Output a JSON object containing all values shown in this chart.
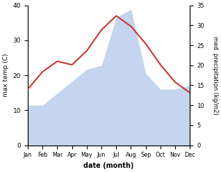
{
  "months": [
    "Jan",
    "Feb",
    "Mar",
    "Apr",
    "May",
    "Jun",
    "Jul",
    "Aug",
    "Sep",
    "Oct",
    "Nov",
    "Dec"
  ],
  "temperature": [
    16,
    21,
    24,
    23,
    27,
    33,
    37,
    34,
    29,
    23,
    18,
    15
  ],
  "precipitation": [
    10,
    10,
    13,
    16,
    19,
    20,
    32,
    34,
    18,
    14,
    14,
    15
  ],
  "temp_color": "#cc3333",
  "precip_color": "#c5d5f0",
  "background_color": "#ffffff",
  "ylabel_left": "max temp (C)",
  "ylabel_right": "med. precipitation (kg/m2)",
  "xlabel": "date (month)",
  "ylim_left": [
    0,
    40
  ],
  "ylim_right": [
    0,
    35
  ],
  "yticks_left": [
    0,
    10,
    20,
    30,
    40
  ],
  "yticks_right": [
    0,
    5,
    10,
    15,
    20,
    25,
    30,
    35
  ],
  "figsize": [
    3.18,
    2.47
  ],
  "dpi": 100
}
